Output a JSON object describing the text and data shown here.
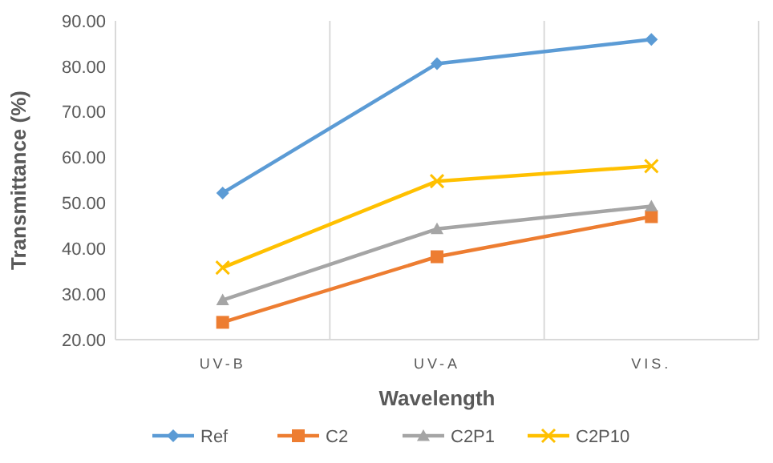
{
  "chart_data": {
    "type": "line",
    "xlabel": "Wavelength",
    "ylabel": "Transmittance (%)",
    "categories": [
      "UV-B",
      "UV-A",
      "VIS."
    ],
    "ylim": [
      20,
      90
    ],
    "yticks": [
      {
        "value": 20,
        "label": "20.00"
      },
      {
        "value": 30,
        "label": "30.00"
      },
      {
        "value": 40,
        "label": "40.00"
      },
      {
        "value": 50,
        "label": "50.00"
      },
      {
        "value": 60,
        "label": "60.00"
      },
      {
        "value": 70,
        "label": "70.00"
      },
      {
        "value": 80,
        "label": "80.00"
      },
      {
        "value": 90,
        "label": "90.00"
      }
    ],
    "grid": "x",
    "legend": "bottom",
    "series": [
      {
        "name": "Ref",
        "color": "#5b9bd5",
        "marker": "diamond",
        "values": [
          52.2,
          80.6,
          85.9
        ]
      },
      {
        "name": "C2",
        "color": "#ed7d31",
        "marker": "square",
        "values": [
          23.8,
          38.2,
          47.0
        ]
      },
      {
        "name": "C2P1",
        "color": "#a5a5a5",
        "marker": "triangle",
        "values": [
          28.7,
          44.3,
          49.3
        ]
      },
      {
        "name": "C2P10",
        "color": "#ffc000",
        "marker": "cross",
        "values": [
          35.8,
          54.8,
          58.1
        ]
      }
    ]
  }
}
